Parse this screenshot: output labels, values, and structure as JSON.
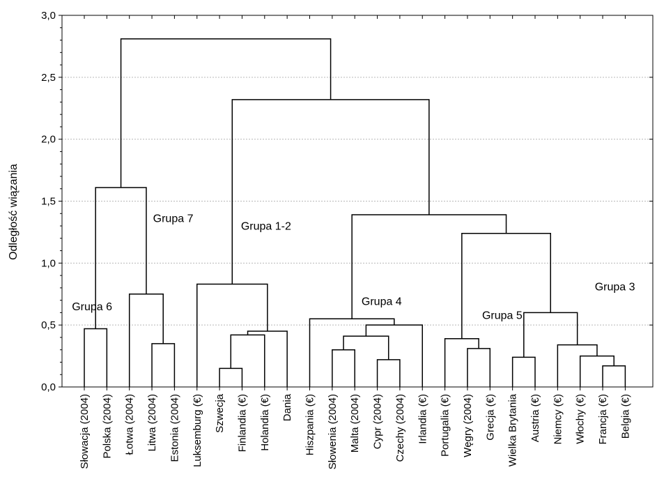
{
  "chart_data": {
    "type": "dendrogram",
    "ylabel": "Odległość wiązania",
    "ylim": [
      0,
      3.0
    ],
    "yticks": [
      {
        "value": 0.0,
        "label": "0,0"
      },
      {
        "value": 0.5,
        "label": "0,5"
      },
      {
        "value": 1.0,
        "label": "1,0"
      },
      {
        "value": 1.5,
        "label": "1,5"
      },
      {
        "value": 2.0,
        "label": "2,0"
      },
      {
        "value": 2.5,
        "label": "2,5"
      },
      {
        "value": 3.0,
        "label": "3,0"
      }
    ],
    "grid": true,
    "leaves": [
      "Słowacja (2004)",
      "Polska (2004)",
      "Łotwa (2004)",
      "Litwa (2004)",
      "Estonia (2004)",
      "Luksemburg (€)",
      "Szwecja",
      "Finlandia (€)",
      "Holandia (€)",
      "Dania",
      "Hiszpania (€)",
      "Słowenia (2004)",
      "Malta (2004)",
      "Cypr (2004)",
      "Czechy (2004)",
      "Irlandia (€)",
      "Portugalia (€)",
      "Węgry (2004)",
      "Grecja (€)",
      "Wielka Brytania",
      "Austria (€)",
      "Niemcy (€)",
      "Włochy (€)",
      "Francja (€)",
      "Belgia (€)"
    ],
    "merges": [
      {
        "id": "m0",
        "left": "L0",
        "right": "L1",
        "height": 0.47
      },
      {
        "id": "m1",
        "left": "L3",
        "right": "L4",
        "height": 0.35
      },
      {
        "id": "m2",
        "left": "L2",
        "right": "m1",
        "height": 0.75
      },
      {
        "id": "m3",
        "left": "m0",
        "right": "m2",
        "height": 1.61
      },
      {
        "id": "m4",
        "left": "L6",
        "right": "L7",
        "height": 0.15
      },
      {
        "id": "m5",
        "left": "m4",
        "right": "L8",
        "height": 0.42
      },
      {
        "id": "m6",
        "left": "m5",
        "right": "L9",
        "height": 0.45
      },
      {
        "id": "m7",
        "left": "L5",
        "right": "m6",
        "height": 0.83
      },
      {
        "id": "m8",
        "left": "L13",
        "right": "L14",
        "height": 0.22
      },
      {
        "id": "m9",
        "left": "L11",
        "right": "L12",
        "height": 0.3
      },
      {
        "id": "m10",
        "left": "m9",
        "right": "m8",
        "height": 0.41
      },
      {
        "id": "m11",
        "left": "m10",
        "right": "L15",
        "height": 0.5
      },
      {
        "id": "m12",
        "left": "L10",
        "right": "m11",
        "height": 0.55
      },
      {
        "id": "m13",
        "left": "L17",
        "right": "L18",
        "height": 0.31
      },
      {
        "id": "m14",
        "left": "L16",
        "right": "m13",
        "height": 0.39
      },
      {
        "id": "m15",
        "left": "L19",
        "right": "L20",
        "height": 0.24
      },
      {
        "id": "m16",
        "left": "L23",
        "right": "L24",
        "height": 0.17
      },
      {
        "id": "m17",
        "left": "L22",
        "right": "m16",
        "height": 0.25
      },
      {
        "id": "m18",
        "left": "L21",
        "right": "m17",
        "height": 0.34
      },
      {
        "id": "m19",
        "left": "m15",
        "right": "m18",
        "height": 0.6
      },
      {
        "id": "m20",
        "left": "m14",
        "right": "m19",
        "height": 1.24
      },
      {
        "id": "m21",
        "left": "m12",
        "right": "m20",
        "height": 1.39
      },
      {
        "id": "m22",
        "left": "m7",
        "right": "m21",
        "height": 2.32
      },
      {
        "id": "m23",
        "left": "m3",
        "right": "m22",
        "height": 2.81
      }
    ],
    "annotations": [
      {
        "text": "Grupa 6",
        "leaf_x": -0.55,
        "y": 0.62
      },
      {
        "text": "Grupa 7",
        "leaf_x": 3.05,
        "y": 1.33
      },
      {
        "text": "Grupa 1-2",
        "leaf_x": 6.95,
        "y": 1.27
      },
      {
        "text": "Grupa 4",
        "leaf_x": 12.3,
        "y": 0.66
      },
      {
        "text": "Grupa 5",
        "leaf_x": 17.65,
        "y": 0.55
      },
      {
        "text": "Grupa 3",
        "leaf_x": 22.65,
        "y": 0.78
      }
    ]
  }
}
